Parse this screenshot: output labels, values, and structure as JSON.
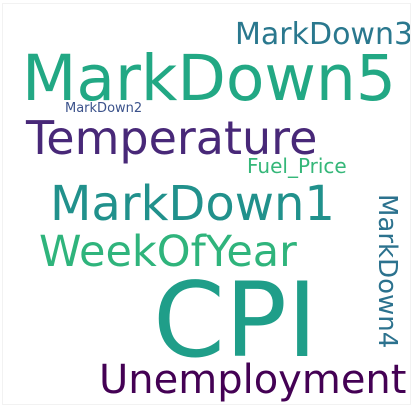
{
  "wordcloud": {
    "words": [
      {
        "text": "MarkDown3",
        "color": "#2a788e"
      },
      {
        "text": "MarkDown5",
        "color": "#22a884"
      },
      {
        "text": "MarkDown2",
        "color": "#3b528b"
      },
      {
        "text": "Temperature",
        "color": "#482878"
      },
      {
        "text": "Fuel_Price",
        "color": "#35b779"
      },
      {
        "text": "MarkDown1",
        "color": "#21918c"
      },
      {
        "text": "WeekOfYear",
        "color": "#2fb47c"
      },
      {
        "text": "CPI",
        "color": "#1f9e89"
      },
      {
        "text": "MarkDown4",
        "color": "#2c728e"
      },
      {
        "text": "Unemployment",
        "color": "#440154"
      }
    ]
  }
}
